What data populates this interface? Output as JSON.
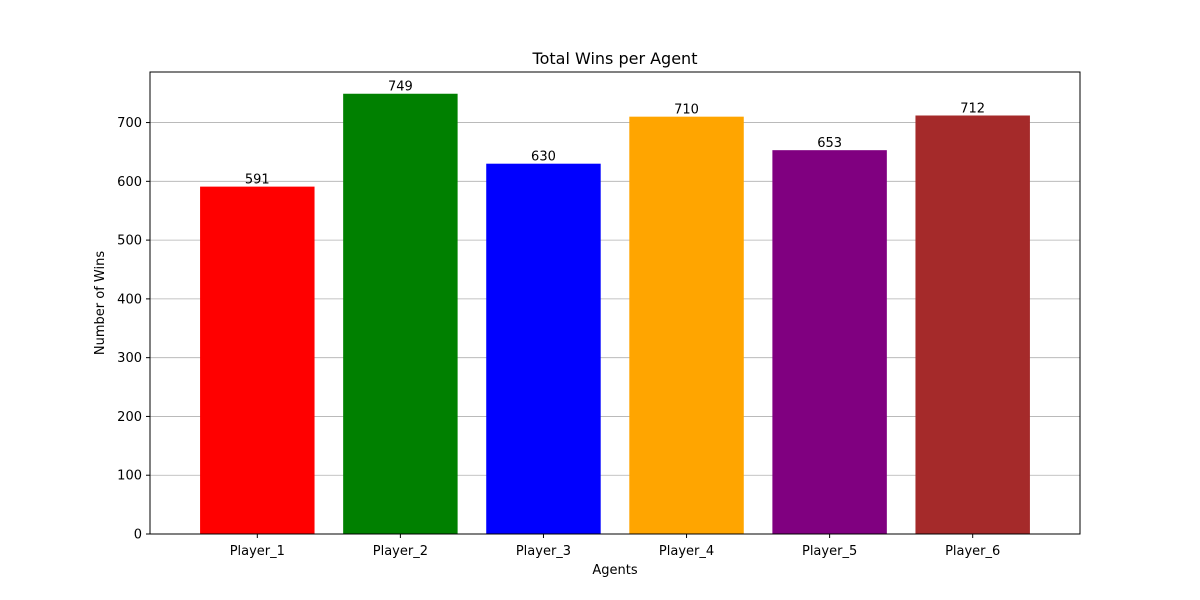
{
  "chart_data": {
    "type": "bar",
    "title": "Total Wins per Agent",
    "xlabel": "Agents",
    "ylabel": "Number of Wins",
    "categories": [
      "Player_1",
      "Player_2",
      "Player_3",
      "Player_4",
      "Player_5",
      "Player_6"
    ],
    "values": [
      591,
      749,
      630,
      710,
      653,
      712
    ],
    "colors": [
      "#ff0000",
      "#008000",
      "#0000ff",
      "#ffa500",
      "#800080",
      "#a52a2a"
    ],
    "ylim": [
      0,
      786
    ],
    "yticks": [
      0,
      100,
      200,
      300,
      400,
      500,
      600,
      700
    ],
    "grid": "y-axis",
    "data_labels": true
  }
}
